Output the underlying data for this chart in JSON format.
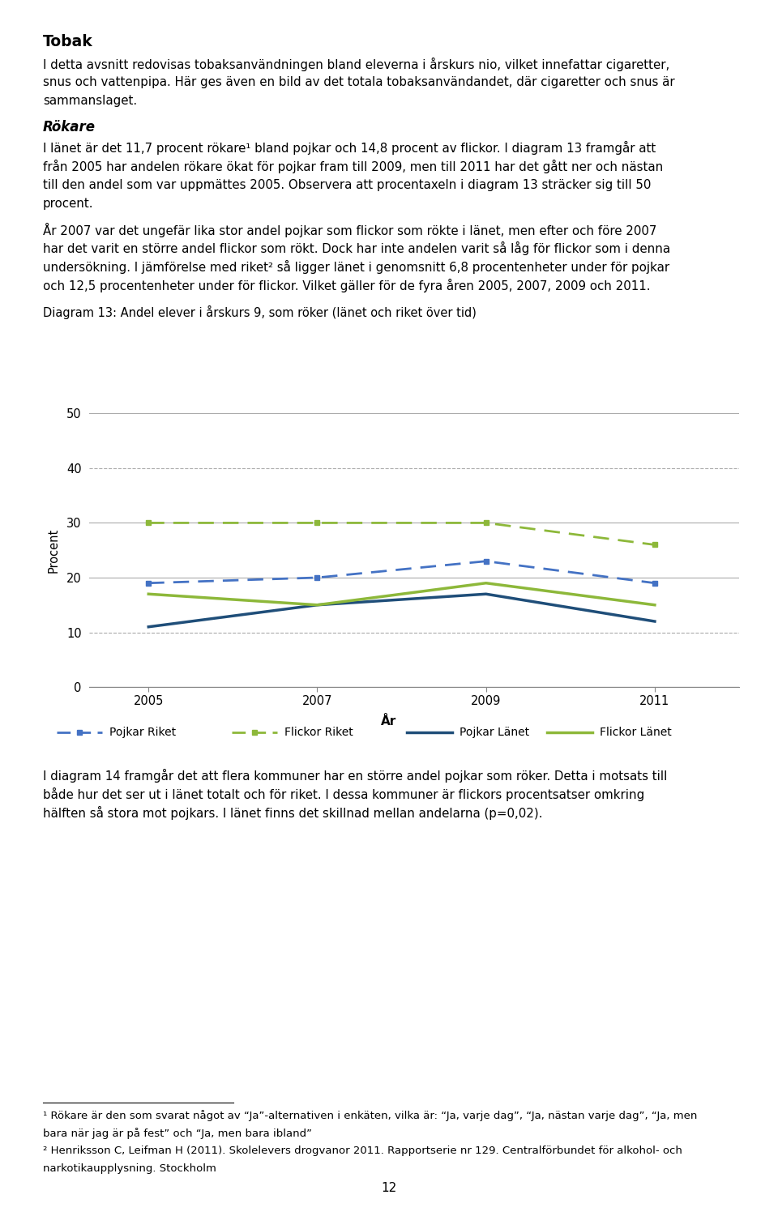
{
  "title": "Diagram 13: Andel elever i årskurs 9, som röker (länet och riket över tid)",
  "xlabel": "År",
  "ylabel": "Procent",
  "years": [
    2005,
    2007,
    2009,
    2011
  ],
  "pojkar_riket": [
    19,
    20,
    23,
    19
  ],
  "flickor_riket": [
    30,
    30,
    30,
    26
  ],
  "pojkar_lanet": [
    11,
    15,
    17,
    12
  ],
  "flickor_lanet": [
    17,
    15,
    19,
    15
  ],
  "blue_dashed_color": "#4472C4",
  "green_dashed_color": "#8DB83A",
  "blue_solid_color": "#1F4E79",
  "green_solid_color": "#8DB83A",
  "ylim": [
    0,
    50
  ],
  "yticks": [
    0,
    10,
    20,
    30,
    40,
    50
  ],
  "xticks": [
    2005,
    2007,
    2009,
    2011
  ],
  "footnote1": "¹ Rökare är den som svarat något av “Ja”-alternativen i enkäten, vilka är: “Ja, varje dag”, “Ja, nästan varje dag”, “Ja, men",
  "footnote1b": "bara när jag är på fest” och “Ja, men bara ibland”",
  "footnote2": "² Henriksson C, Leifman H (2011). Skolelevers drogvanor 2011. Rapportserie nr 129. Centralförbundet för alkohol- och",
  "footnote2b": "narkotikaupplysning. Stockholm",
  "page_number": "12"
}
